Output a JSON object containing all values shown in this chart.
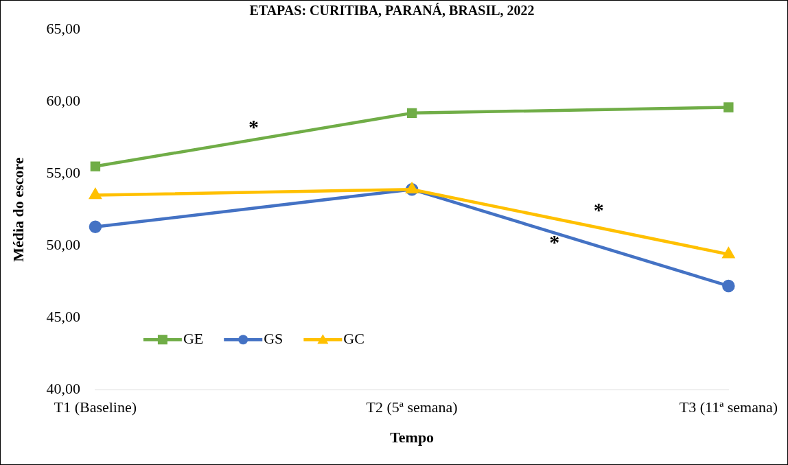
{
  "chart_data": {
    "type": "line",
    "title": "ETAPAS: CURITIBA, PARANÁ, BRASIL, 2022",
    "xlabel": "Tempo",
    "ylabel": "Média do escore",
    "categories": [
      "T1 (Baseline)",
      "T2 (5ª semana)",
      "T3 (11ª semana)"
    ],
    "series": [
      {
        "name": "GE",
        "color": "#70ad47",
        "marker": "square",
        "values": [
          55.5,
          59.2,
          59.6
        ]
      },
      {
        "name": "GS",
        "color": "#4472c4",
        "marker": "circle",
        "values": [
          51.3,
          53.9,
          47.2
        ]
      },
      {
        "name": "GC",
        "color": "#ffc000",
        "marker": "triangle",
        "values": [
          53.5,
          53.9,
          49.4
        ]
      }
    ],
    "ylim": [
      40,
      65
    ],
    "yticks": [
      {
        "value": 40,
        "label": "40,00"
      },
      {
        "value": 45,
        "label": "45,00"
      },
      {
        "value": 50,
        "label": "50,00"
      },
      {
        "value": 55,
        "label": "55,00"
      },
      {
        "value": 60,
        "label": "60,00"
      },
      {
        "value": 65,
        "label": "65,00"
      }
    ],
    "grid": false,
    "legend": "bottom left",
    "line_style": "solid",
    "annotations": [
      "*",
      "*",
      "*"
    ]
  }
}
